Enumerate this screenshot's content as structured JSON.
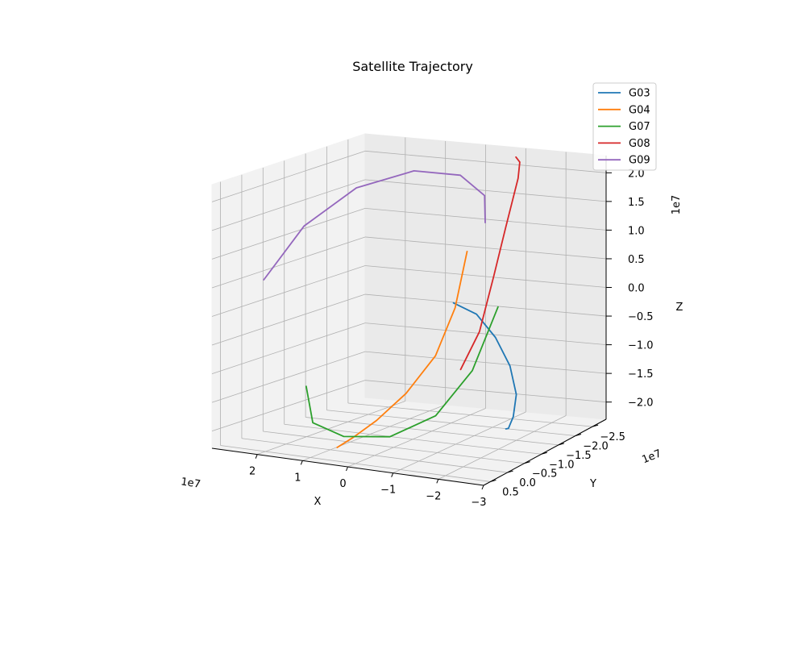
{
  "chart_data": {
    "type": "line3d",
    "title": "Satellite Trajectory",
    "xlabel": "X",
    "ylabel": "Y",
    "zlabel": "Z",
    "x_offset_label": "1e7",
    "y_offset_label": "1e7",
    "z_offset_label": "1e7",
    "xlim": [
      -3.0,
      3.0
    ],
    "ylim": [
      -2.9,
      0.7
    ],
    "zlim": [
      -2.3,
      2.3
    ],
    "x_ticks": [
      2,
      1,
      0,
      -1,
      -2,
      -3
    ],
    "x_tick_labels": [
      "2",
      "1",
      "0",
      "−1",
      "−2",
      "−3"
    ],
    "y_ticks": [
      0.5,
      0.0,
      -0.5,
      -1.0,
      -1.5,
      -2.0,
      -2.5
    ],
    "y_tick_labels": [
      "0.5",
      "0.0",
      "−0.5",
      "−1.0",
      "−1.5",
      "−2.0",
      "−2.5"
    ],
    "z_ticks": [
      2.0,
      1.5,
      1.0,
      0.5,
      0.0,
      -0.5,
      -1.0,
      -1.5,
      -2.0
    ],
    "z_tick_labels": [
      "2.0",
      "1.5",
      "1.0",
      "0.5",
      "0.0",
      "−0.5",
      "−1.0",
      "−1.5",
      "−2.0"
    ],
    "grid": true,
    "legend_position": "top-right",
    "series": [
      {
        "name": "G03",
        "color": "#1f77b4",
        "points": [
          [
            -1.7,
            -0.1,
            0.5
          ],
          [
            -1.9,
            -0.5,
            0.2
          ],
          [
            -2.05,
            -0.85,
            -0.3
          ],
          [
            -2.1,
            -1.2,
            -0.9
          ],
          [
            -2.0,
            -1.5,
            -1.5
          ],
          [
            -1.8,
            -1.65,
            -1.95
          ],
          [
            -1.6,
            -1.75,
            -2.2
          ],
          [
            -1.45,
            -1.85,
            -2.25
          ]
        ]
      },
      {
        "name": "G04",
        "color": "#ff7f0e",
        "points": [
          [
            -0.2,
            -2.2,
            0.65
          ],
          [
            -0.05,
            -2.05,
            -0.3
          ],
          [
            0.1,
            -1.7,
            -1.05
          ],
          [
            0.25,
            -1.1,
            -1.55
          ],
          [
            0.35,
            -0.45,
            -1.85
          ],
          [
            0.4,
            0.1,
            -2.0
          ],
          [
            0.45,
            0.45,
            -2.08
          ]
        ]
      },
      {
        "name": "G07",
        "color": "#2ca02c",
        "points": [
          [
            1.05,
            0.55,
            -1.05
          ],
          [
            1.35,
            0.05,
            -1.85
          ],
          [
            1.1,
            -0.45,
            -2.2
          ],
          [
            0.4,
            -0.85,
            -2.25
          ],
          [
            -0.4,
            -1.15,
            -1.9
          ],
          [
            -1.0,
            -1.45,
            -1.15
          ],
          [
            -1.35,
            -1.75,
            -0.1
          ]
        ]
      },
      {
        "name": "G08",
        "color": "#d62728",
        "points": [
          [
            -1.2,
            -0.9,
            -0.95
          ],
          [
            -1.3,
            -1.3,
            -0.4
          ],
          [
            -1.2,
            -1.8,
            0.4
          ],
          [
            -1.05,
            -2.3,
            1.1
          ],
          [
            -0.9,
            -2.8,
            1.8
          ],
          [
            -0.85,
            -2.9,
            2.05
          ],
          [
            -0.8,
            -2.85,
            2.15
          ]
        ]
      },
      {
        "name": "G09",
        "color": "#9467bd",
        "points": [
          [
            2.55,
            -0.05,
            0.5
          ],
          [
            2.25,
            -0.7,
            1.3
          ],
          [
            1.65,
            -1.35,
            1.85
          ],
          [
            0.85,
            -1.95,
            2.05
          ],
          [
            0.15,
            -2.4,
            1.9
          ],
          [
            -0.35,
            -2.5,
            1.55
          ],
          [
            -0.55,
            -2.3,
            1.15
          ]
        ]
      }
    ]
  }
}
